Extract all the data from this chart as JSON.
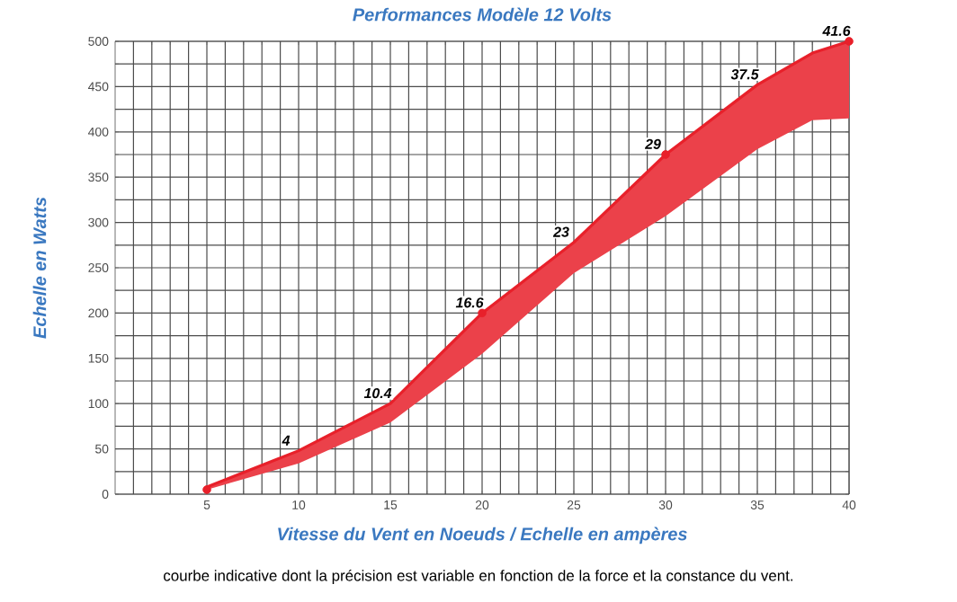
{
  "chart_data": {
    "type": "line",
    "title": "Performances Modèle 12 Volts",
    "xlabel": "Vitesse du Vent en Noeuds / Echelle en ampères",
    "ylabel": "Echelle en Watts",
    "xlim": [
      0,
      40
    ],
    "ylim": [
      0,
      500
    ],
    "xticks": [
      {
        "value": 1,
        "label": null
      },
      {
        "value": 2,
        "label": null
      },
      {
        "value": 3,
        "label": null
      },
      {
        "value": 4,
        "label": null
      },
      5,
      {
        "value": 6,
        "label": null
      },
      {
        "value": 7,
        "label": null
      },
      {
        "value": 8,
        "label": null
      },
      {
        "value": 9,
        "label": null
      },
      10,
      {
        "value": 11,
        "label": null
      },
      {
        "value": 12,
        "label": null
      },
      {
        "value": 13,
        "label": null
      },
      {
        "value": 14,
        "label": null
      },
      15,
      {
        "value": 16,
        "label": null
      },
      {
        "value": 17,
        "label": null
      },
      {
        "value": 18,
        "label": null
      },
      {
        "value": 19,
        "label": null
      },
      20,
      {
        "value": 21,
        "label": null
      },
      {
        "value": 22,
        "label": null
      },
      {
        "value": 23,
        "label": null
      },
      {
        "value": 24,
        "label": null
      },
      25,
      {
        "value": 26,
        "label": null
      },
      {
        "value": 27,
        "label": null
      },
      {
        "value": 28,
        "label": null
      },
      {
        "value": 29,
        "label": null
      },
      30,
      {
        "value": 31,
        "label": null
      },
      {
        "value": 32,
        "label": null
      },
      {
        "value": 33,
        "label": null
      },
      {
        "value": 34,
        "label": null
      },
      35,
      {
        "value": 36,
        "label": null
      },
      {
        "value": 37,
        "label": null
      },
      {
        "value": 38,
        "label": null
      },
      {
        "value": 39,
        "label": null
      },
      40
    ],
    "yticks": [
      0,
      {
        "value": 25,
        "label": null
      },
      50,
      {
        "value": 75,
        "label": null
      },
      100,
      {
        "value": 125,
        "label": null
      },
      150,
      {
        "value": 175,
        "label": null
      },
      200,
      {
        "value": 225,
        "label": null
      },
      250,
      {
        "value": 275,
        "label": null
      },
      300,
      {
        "value": 325,
        "label": null
      },
      350,
      {
        "value": 375,
        "label": null
      },
      400,
      {
        "value": 425,
        "label": null
      },
      450,
      {
        "value": 475,
        "label": null
      },
      500
    ],
    "grid": true,
    "series": [
      {
        "type": "line",
        "color": "#e8202a",
        "x": [
          5,
          10,
          15,
          20,
          25,
          30,
          35,
          38,
          40
        ],
        "values": [
          8,
          48,
          100,
          200,
          278,
          375,
          452,
          487,
          500
        ],
        "lower": [
          5,
          34,
          79,
          155,
          244,
          307,
          381,
          413,
          415
        ],
        "upper": [
          8,
          48,
          100,
          200,
          278,
          375,
          452,
          487,
          500
        ]
      },
      {
        "type": "scatter",
        "color": "#e8202a",
        "marker": "circle",
        "x": [
          5,
          20,
          30,
          40
        ],
        "values": [
          5,
          200,
          375,
          500
        ]
      }
    ],
    "annotations": [
      {
        "text": "4",
        "x": 10,
        "y": 48
      },
      {
        "text": "10.4",
        "x": 15,
        "y": 100
      },
      {
        "text": "16.6",
        "x": 20,
        "y": 200
      },
      {
        "text": "23",
        "x": 25,
        "y": 278
      },
      {
        "text": "29",
        "x": 30,
        "y": 375
      },
      {
        "text": "37.5",
        "x": 35,
        "y": 452
      },
      {
        "text": "41.6",
        "x": 40,
        "y": 500
      },
      "courbe indicative dont la précision est variable en fonction de la force et la constance du vent."
    ]
  }
}
